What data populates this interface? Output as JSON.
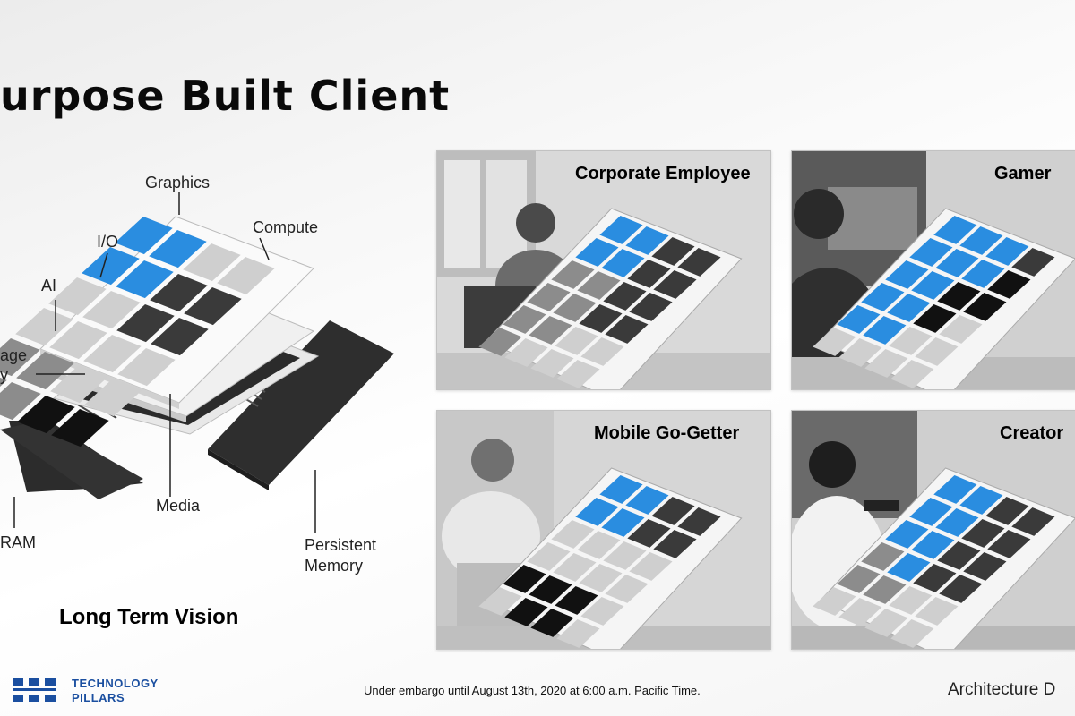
{
  "slide": {
    "title": "urpose Built Client",
    "vision_caption": "Long Term Vision",
    "embargo": "Under embargo until August 13th, 2020 at 6:00 a.m. Pacific Time.",
    "footer_right": "Architecture D"
  },
  "diagram": {
    "labels": {
      "graphics": "Graphics",
      "compute": "Compute",
      "io": "I/O",
      "ai": "AI",
      "storage_line1": "age",
      "storage_line2": "y",
      "media": "Media",
      "dram": "RAM",
      "persistent_line1": "Persistent",
      "persistent_line2": "Memory"
    }
  },
  "cards": [
    {
      "caption": "Corporate Employee"
    },
    {
      "caption": "Gamer"
    },
    {
      "caption": "Mobile Go-Getter"
    },
    {
      "caption": "Creator"
    }
  ],
  "logo": {
    "line1": "TECHNOLOGY",
    "line2": "PILLARS"
  },
  "colors": {
    "accent_blue": "#2a8de0",
    "tile_dark": "#3a3a3a",
    "tile_light": "#cfcfcf",
    "logo_blue": "#1b4fa0"
  }
}
